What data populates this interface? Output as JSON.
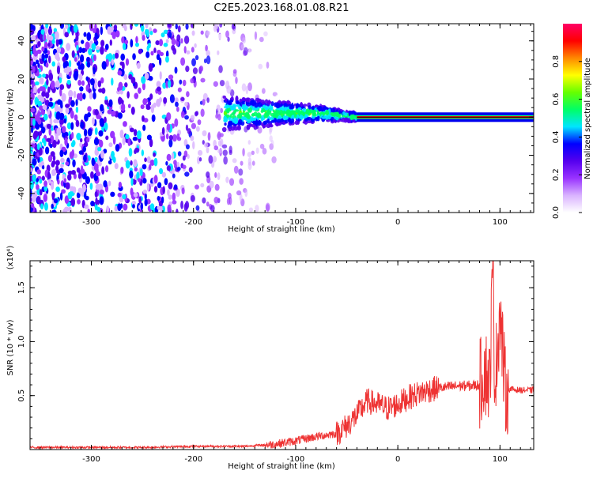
{
  "title": "C2E5.2023.168.01.08.R21",
  "chart_data": [
    {
      "type": "heatmap",
      "xlabel": "Height of straight line (km)",
      "ylabel": "Frequency (Hz)",
      "xlim": [
        -360,
        133
      ],
      "ylim": [
        -50,
        49
      ],
      "x_ticks": [
        -300,
        -200,
        -100,
        0,
        100
      ],
      "x_tick_labels": [
        "-300",
        "-200",
        "-100",
        "0",
        "100"
      ],
      "y_ticks": [
        -40,
        -20,
        0,
        20,
        40
      ],
      "y_tick_labels": [
        "-40",
        "-20",
        "0",
        "20",
        "40"
      ],
      "colorbar": {
        "label": "Normalized spectral amplitude",
        "range": [
          0,
          1
        ],
        "ticks": [
          0,
          0.2,
          0.4,
          0.6,
          0.8
        ],
        "tick_labels": [
          "0.0",
          "0.2",
          "0.4",
          "0.6",
          "0.8"
        ],
        "colors": [
          "#ffffff",
          "#d9b3ff",
          "#9933ff",
          "#5500ee",
          "#0000ff",
          "#00e5ff",
          "#00ff66",
          "#66ff00",
          "#ffff00",
          "#ff8800",
          "#ff0000",
          "#ff0066"
        ]
      },
      "regions": [
        {
          "name": "noise",
          "x": [
            -360,
            -130
          ],
          "f": [
            -50,
            49
          ],
          "level": 0.1
        },
        {
          "name": "transition",
          "x": [
            -170,
            -40
          ],
          "f": [
            -12,
            10
          ],
          "level": 0.25
        },
        {
          "name": "carrier",
          "x": [
            -40,
            133
          ],
          "f": [
            -1,
            1
          ],
          "level": 0.9
        }
      ],
      "grid": false
    },
    {
      "type": "line",
      "xlabel": "Height of straight line (km)",
      "ylabel": "SNR (10 * v/v)",
      "y_multiplier": "(x10⁴)",
      "xlim": [
        -360,
        133
      ],
      "ylim": [
        0,
        1.75
      ],
      "x_ticks": [
        -300,
        -200,
        -100,
        0,
        100
      ],
      "x_tick_labels": [
        "-300",
        "-200",
        "-100",
        "0",
        "100"
      ],
      "y_ticks": [
        0.5,
        1.0,
        1.5
      ],
      "y_tick_labels": [
        "0.5",
        "1.0",
        "1.5"
      ],
      "series": [
        {
          "color": "#ee3333",
          "x": [
            -360,
            -300,
            -250,
            -200,
            -150,
            -120,
            -100,
            -80,
            -60,
            -50,
            -40,
            -30,
            -20,
            -10,
            0,
            10,
            20,
            30,
            40,
            50,
            60,
            70,
            80,
            85,
            90,
            93,
            95,
            100,
            105,
            110,
            120,
            133
          ],
          "y": [
            0.02,
            0.02,
            0.02,
            0.03,
            0.03,
            0.05,
            0.08,
            0.12,
            0.15,
            0.22,
            0.32,
            0.45,
            0.42,
            0.38,
            0.42,
            0.48,
            0.52,
            0.55,
            0.57,
            0.58,
            0.59,
            0.59,
            0.6,
            0.75,
            0.6,
            1.75,
            0.6,
            1.3,
            0.55,
            0.56,
            0.55,
            0.55
          ]
        }
      ],
      "grid": false
    }
  ]
}
